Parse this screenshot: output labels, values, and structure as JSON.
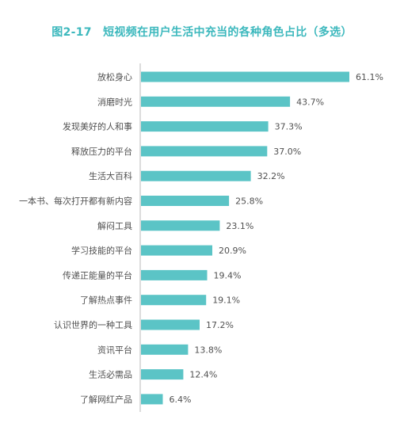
{
  "chart_data": {
    "type": "bar",
    "orientation": "horizontal",
    "title": "图2-17　短视频在用户生活中充当的各种角色占比（多选）",
    "xlabel": "",
    "ylabel": "",
    "xlim": [
      0,
      62
    ],
    "grid": false,
    "legend": "none",
    "bar_color": "#5bc4c6",
    "title_color": "#3cb8bd",
    "axis_color": "#b9b9b9",
    "value_suffix": "%",
    "categories": [
      "放松身心",
      "消磨时光",
      "发现美好的人和事",
      "释放压力的平台",
      "生活大百科",
      "一本书、每次打开都有新内容",
      "解闷工具",
      "学习技能的平台",
      "传递正能量的平台",
      "了解热点事件",
      "认识世界的一种工具",
      "资讯平台",
      "生活必需品",
      "了解网红产品"
    ],
    "values": [
      61.1,
      43.7,
      37.3,
      37.0,
      32.2,
      25.8,
      23.1,
      20.9,
      19.4,
      19.1,
      17.2,
      13.8,
      12.4,
      6.4
    ],
    "value_labels": [
      "61.1%",
      "43.7%",
      "37.3%",
      "37.0%",
      "32.2%",
      "25.8%",
      "23.1%",
      "20.9%",
      "19.4%",
      "19.1%",
      "17.2%",
      "13.8%",
      "12.4%",
      "6.4%"
    ]
  }
}
